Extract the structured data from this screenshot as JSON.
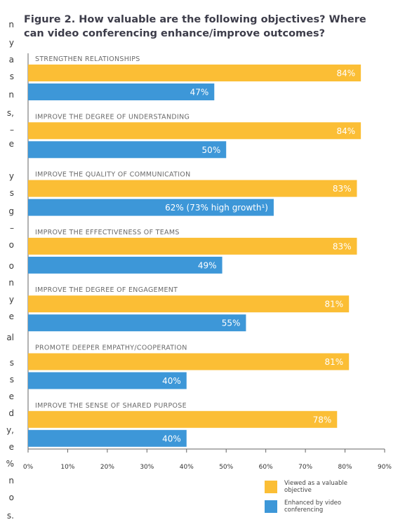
{
  "side_text_fragments": [
    "n",
    "y",
    "a",
    "s",
    "n",
    "s,",
    "–",
    "e",
    "y",
    "s",
    "g",
    "–",
    "o",
    "o",
    "n",
    "y",
    "e",
    "al",
    "s",
    "s",
    "e",
    "d",
    "y,",
    "e",
    "%",
    "n",
    "o",
    "s."
  ],
  "chart_data": {
    "type": "bar",
    "orientation": "horizontal",
    "title": "Figure 2. How valuable are the following objectives? Where can video conferencing enhance/improve outcomes?",
    "categories": [
      "STRENGTHEN RELATIONSHIPS",
      "IMPROVE THE DEGREE OF UNDERSTANDING",
      "IMPROVE THE QUALITY OF COMMUNICATION",
      "IMPROVE THE EFFECTIVENESS OF TEAMS",
      "IMPROVE THE DEGREE OF ENGAGEMENT",
      "PROMOTE DEEPER EMPATHY/COOPERATION",
      "IMPROVE THE SENSE OF SHARED PURPOSE"
    ],
    "series": [
      {
        "name": "Viewed as a valuable objective",
        "color": "#fbbe35",
        "values": [
          84,
          84,
          83,
          83,
          81,
          81,
          78
        ],
        "labels": [
          "84%",
          "84%",
          "83%",
          "83%",
          "81%",
          "81%",
          "78%"
        ]
      },
      {
        "name": "Enhanced by video conferencing",
        "color": "#3d97d8",
        "values": [
          47,
          50,
          62,
          49,
          55,
          40,
          40
        ],
        "labels": [
          "47%",
          "50%",
          "62% (73% high growth¹)",
          "49%",
          "55%",
          "40%",
          "40%"
        ]
      }
    ],
    "x_ticks": [
      "0%",
      "10%",
      "20%",
      "30%",
      "40%",
      "50%",
      "60%",
      "70%",
      "80%",
      "90%"
    ],
    "xlim": [
      0,
      90
    ],
    "grid": false,
    "legend_position": "bottom-right"
  },
  "legend": [
    {
      "text": "Viewed as a valuable objective",
      "color": "#fbbe35"
    },
    {
      "text": "Enhanced by video conferencing",
      "color": "#3d97d8"
    }
  ]
}
